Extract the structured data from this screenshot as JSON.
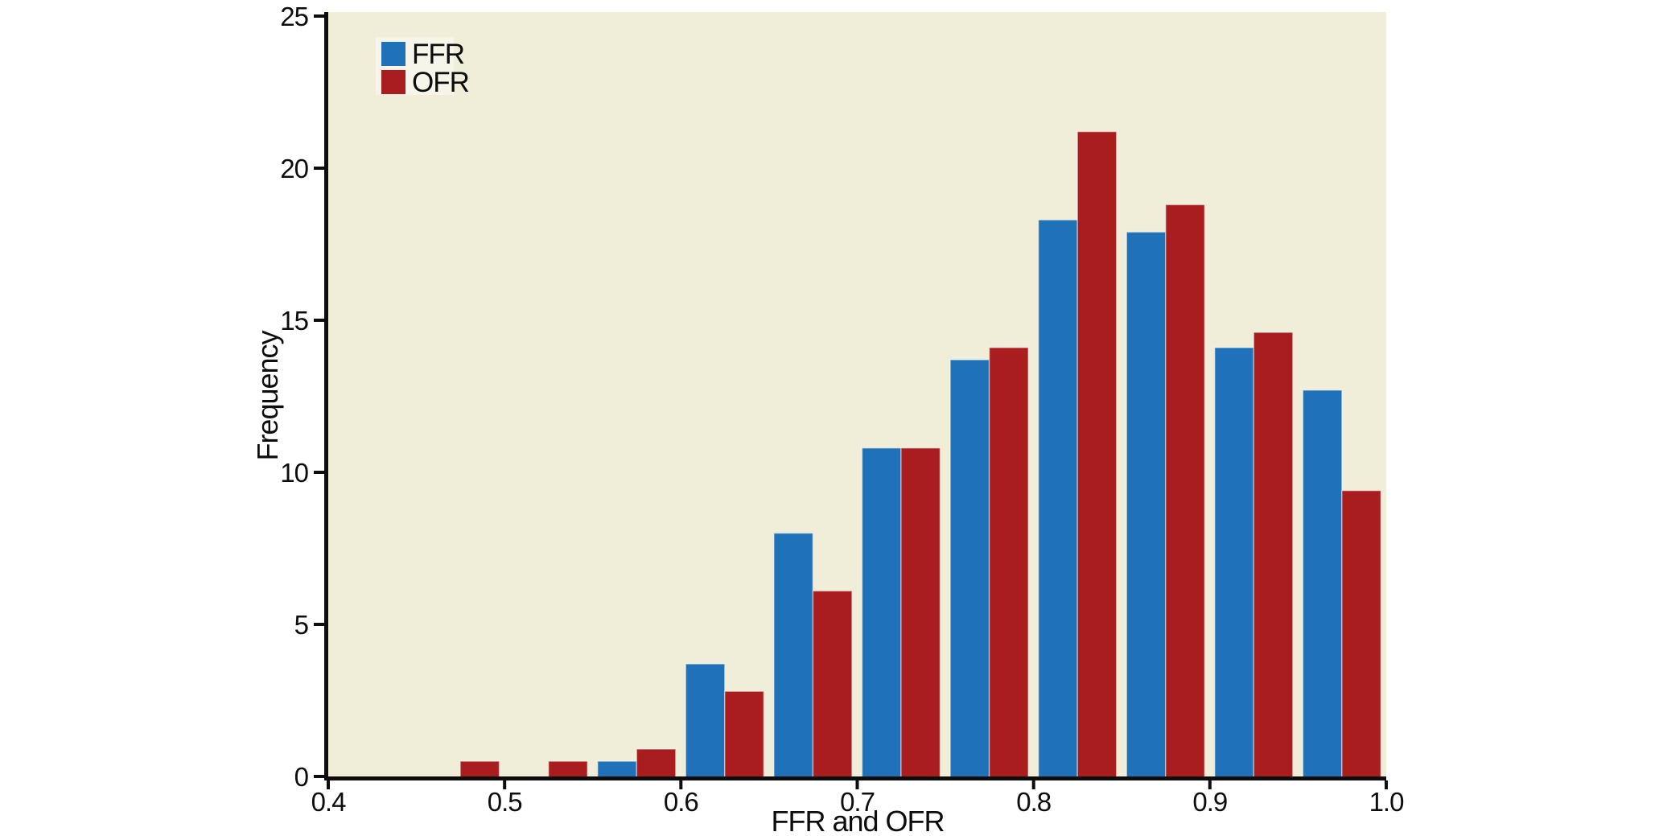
{
  "chart_data": {
    "type": "bar",
    "title": "",
    "xlabel": "FFR and OFR",
    "ylabel": "Frequency",
    "xlim": [
      0.4,
      1.0
    ],
    "ylim": [
      0,
      25
    ],
    "x_ticks": [
      0.4,
      0.5,
      0.6,
      0.7,
      0.8,
      0.9,
      1.0
    ],
    "x_tick_labels": [
      "0.4",
      "0.5",
      "0.6",
      "0.7",
      "0.8",
      "0.9",
      "1.0"
    ],
    "y_ticks": [
      0,
      5,
      10,
      15,
      20,
      25
    ],
    "y_tick_labels": [
      "0",
      "5",
      "10",
      "15",
      "20",
      "25"
    ],
    "grid": false,
    "legend_position": "upper-left",
    "plot_bg": "#f0edd9",
    "legend_bg": "#f7f5ea",
    "axis_color": "#0d0d0d",
    "bin_width": 0.05,
    "bin_starts": [
      0.45,
      0.5,
      0.55,
      0.6,
      0.65,
      0.7,
      0.75,
      0.8,
      0.85,
      0.9,
      0.95
    ],
    "series": [
      {
        "name": "FFR",
        "color": "#1f72b7",
        "values": [
          0,
          0,
          0.5,
          3.7,
          8.0,
          10.8,
          13.7,
          18.3,
          17.9,
          14.1,
          12.7
        ]
      },
      {
        "name": "OFR",
        "color": "#aa1d1e",
        "values": [
          0.5,
          0.5,
          0.9,
          2.8,
          6.1,
          10.8,
          14.1,
          21.2,
          18.8,
          14.6,
          9.4
        ]
      }
    ]
  }
}
